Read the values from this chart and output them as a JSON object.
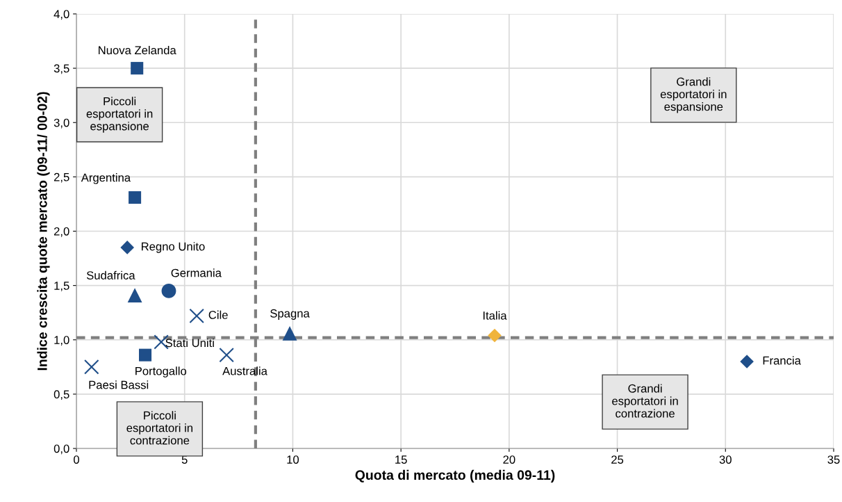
{
  "chart_data": {
    "type": "scatter",
    "xlabel": "Quota di mercato (media 09-11)",
    "ylabel": "Indice crescita quote mercato (09-11/ 00-02)",
    "xlim": [
      0,
      35
    ],
    "xticks": [
      0,
      5,
      10,
      15,
      20,
      25,
      30,
      35
    ],
    "ylim": [
      0,
      4
    ],
    "yticks": [
      {
        "value": 0,
        "label": "0,0"
      },
      {
        "value": 0.5,
        "label": "0,5"
      },
      {
        "value": 1,
        "label": "1,0"
      },
      {
        "value": 1.5,
        "label": "1,5"
      },
      {
        "value": 2,
        "label": "2,0"
      },
      {
        "value": 2.5,
        "label": "2,5"
      },
      {
        "value": 3,
        "label": "3,0"
      },
      {
        "value": 3.5,
        "label": "3,5"
      },
      {
        "value": 4,
        "label": "4,0"
      }
    ],
    "grid": true,
    "series": [
      {
        "name": "Nuova Zelanda",
        "color": "#1f4e89",
        "marker": "square",
        "x": [
          2.8
        ],
        "values": [
          3.5
        ]
      },
      {
        "name": "Argentina",
        "color": "#1f4e89",
        "marker": "square",
        "x": [
          2.7
        ],
        "values": [
          2.31
        ]
      },
      {
        "name": "Regno Unito",
        "color": "#1f4e89",
        "marker": "diamond",
        "x": [
          2.35
        ],
        "values": [
          1.85
        ]
      },
      {
        "name": "Sudafrica",
        "color": "#1f4e89",
        "marker": "triangle",
        "x": [
          2.7
        ],
        "values": [
          1.41
        ]
      },
      {
        "name": "Germania",
        "color": "#1f4e89",
        "marker": "circle",
        "x": [
          4.27
        ],
        "values": [
          1.45
        ]
      },
      {
        "name": "Cile",
        "color": "#1f4e89",
        "marker": "cross",
        "x": [
          5.56
        ],
        "values": [
          1.22
        ]
      },
      {
        "name": "Stati Uniti",
        "color": "#1f4e89",
        "marker": "cross",
        "x": [
          3.92
        ],
        "values": [
          0.98
        ]
      },
      {
        "name": "Portogallo",
        "color": "#1f4e89",
        "marker": "square",
        "x": [
          3.18
        ],
        "values": [
          0.86
        ]
      },
      {
        "name": "Paesi Bassi",
        "color": "#1f4e89",
        "marker": "cross",
        "x": [
          0.7
        ],
        "values": [
          0.75
        ]
      },
      {
        "name": "Australia",
        "color": "#1f4e89",
        "marker": "cross",
        "x": [
          6.94
        ],
        "values": [
          0.86
        ]
      },
      {
        "name": "Spagna",
        "color": "#1f4e89",
        "marker": "triangle",
        "x": [
          9.86
        ],
        "values": [
          1.06
        ]
      },
      {
        "name": "Italia",
        "color": "#f0b43c",
        "marker": "diamond",
        "x": [
          19.33
        ],
        "values": [
          1.04
        ]
      },
      {
        "name": "Francia",
        "color": "#1f4e89",
        "marker": "diamond",
        "x": [
          30.99
        ],
        "values": [
          0.8
        ]
      }
    ],
    "ref_lines": [
      {
        "axis": "x",
        "value": 8.28,
        "color": "#7f7f7f",
        "line_style": "dashed"
      },
      {
        "axis": "y",
        "value": 1.02,
        "color": "#7f7f7f",
        "line_style": "dashed"
      }
    ],
    "annotations": [
      "Piccoli\nesportatori in\nespansione",
      "Grandi\nesportatori in\nespansione",
      "Piccoli\nesportatori in\ncontrazione",
      "Grandi\nesportatori in\ncontrazione"
    ]
  }
}
